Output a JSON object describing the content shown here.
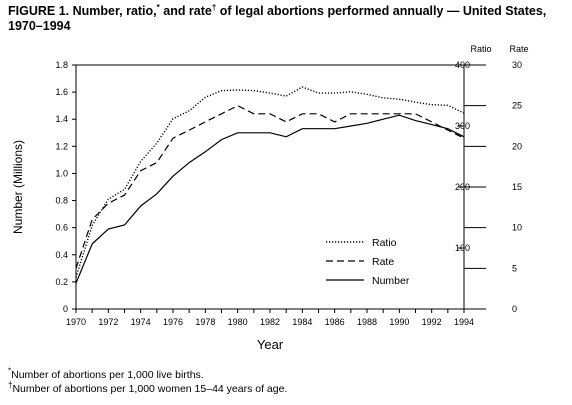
{
  "title": {
    "part1": "FIGURE 1. Number, ratio,",
    "mark1": "*",
    "part2": " and rate",
    "mark2": "†",
    "part3": " of legal abortions performed annually — United States, 1970–1994"
  },
  "footnotes": [
    {
      "mark": "*",
      "text": "Number of abortions per 1,000 live births."
    },
    {
      "mark": "†",
      "text": "Number of abortions per 1,000 women 15–44 years of age."
    }
  ],
  "chart_data": {
    "type": "line",
    "xlabel": "Year",
    "ylabel": "Number (Millions)",
    "ylim": [
      0,
      1.8
    ],
    "xlim": [
      1970,
      1994
    ],
    "y_ticks": [
      "0",
      "0.2",
      "0.4",
      "0.6",
      "0.8",
      "1.0",
      "1.2",
      "1.4",
      "1.6",
      "1.8"
    ],
    "x_ticks": [
      "1970",
      "1972",
      "1974",
      "1976",
      "1978",
      "1980",
      "1982",
      "1984",
      "1986",
      "1988",
      "1990",
      "1992",
      "1994"
    ],
    "ratio_axis": {
      "label": "Ratio",
      "range": [
        0,
        400
      ],
      "ticks": [
        "100",
        "200",
        "300",
        "400"
      ]
    },
    "rate_axis": {
      "label": "Rate",
      "range": [
        0,
        30
      ],
      "ticks": [
        "0",
        "5",
        "10",
        "15",
        "20",
        "25",
        "30"
      ]
    },
    "grid": false,
    "legend_placement": "center-right",
    "x": [
      1970,
      1971,
      1972,
      1973,
      1974,
      1975,
      1976,
      1977,
      1978,
      1979,
      1980,
      1981,
      1982,
      1983,
      1984,
      1985,
      1986,
      1987,
      1988,
      1989,
      1990,
      1991,
      1992,
      1993,
      1994
    ],
    "series": [
      {
        "name": "Ratio",
        "style": "dotted",
        "axis": "ratio",
        "values": [
          52,
          137,
          180,
          196,
          242,
          272,
          312,
          325,
          347,
          358,
          359,
          358,
          354,
          349,
          364,
          354,
          354,
          356,
          352,
          346,
          344,
          339,
          335,
          334,
          321
        ]
      },
      {
        "name": "Rate",
        "style": "dashed",
        "axis": "rate",
        "values": [
          5,
          11,
          13,
          14,
          17,
          18,
          21,
          22,
          23,
          24,
          25,
          24,
          24,
          23,
          24,
          24,
          23,
          24,
          24,
          24,
          24,
          24,
          23,
          22,
          21
        ]
      },
      {
        "name": "Number",
        "style": "solid",
        "axis": "number",
        "values": [
          0.19,
          0.48,
          0.59,
          0.62,
          0.76,
          0.85,
          0.98,
          1.08,
          1.16,
          1.25,
          1.3,
          1.3,
          1.3,
          1.27,
          1.33,
          1.33,
          1.33,
          1.35,
          1.37,
          1.4,
          1.43,
          1.39,
          1.36,
          1.33,
          1.27
        ]
      }
    ]
  }
}
